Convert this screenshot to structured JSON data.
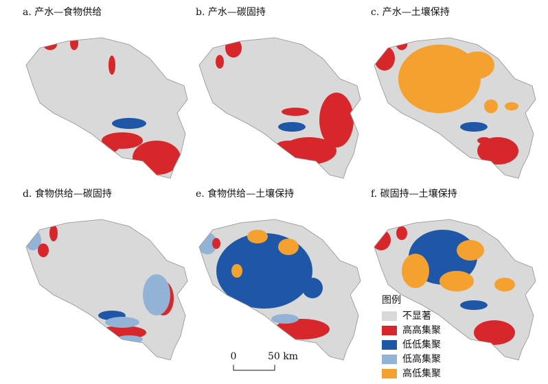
{
  "panels": [
    {
      "title": "a. 产水—食物供给"
    },
    {
      "title": "b. 产水—碳固持"
    },
    {
      "title": "c. 产水—土壤保持"
    },
    {
      "title": "d. 食物供给—碳固持"
    },
    {
      "title": "e. 食物供给—土壤保持"
    },
    {
      "title": "f. 碳固持—土壤保持"
    }
  ],
  "legend": {
    "title": "图例",
    "items": [
      {
        "label": "不显著",
        "color": "#d9d9d9"
      },
      {
        "label": "高高集聚",
        "color": "#d7272b"
      },
      {
        "label": "低低集聚",
        "color": "#1f57a8"
      },
      {
        "label": "低高集聚",
        "color": "#93b3d6"
      },
      {
        "label": "高低集聚",
        "color": "#f4a12f"
      }
    ]
  },
  "scale_bar": {
    "start": "0",
    "end": "50 km"
  }
}
